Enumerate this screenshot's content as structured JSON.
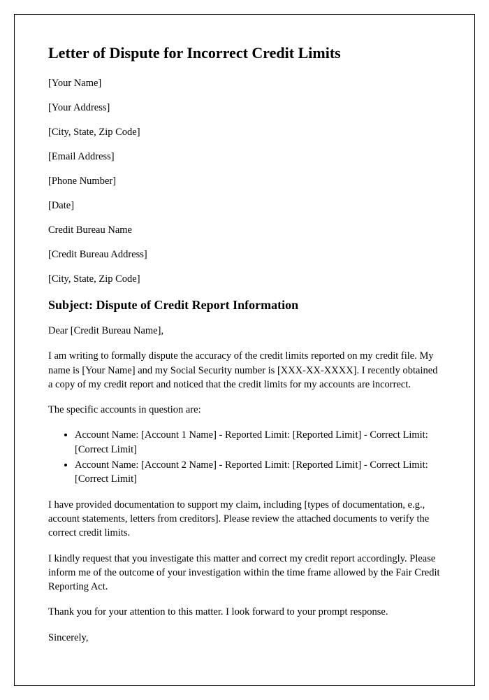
{
  "title": "Letter of Dispute for Incorrect Credit Limits",
  "fields": {
    "your_name": "[Your Name]",
    "your_address": "[Your Address]",
    "your_city_state_zip": "[City, State, Zip Code]",
    "email": "[Email Address]",
    "phone": "[Phone Number]",
    "date": "[Date]",
    "bureau_name": "Credit Bureau Name",
    "bureau_address": "[Credit Bureau Address]",
    "bureau_city_state_zip": "[City, State, Zip Code]"
  },
  "subject": "Subject: Dispute of Credit Report Information",
  "salutation": "Dear [Credit Bureau Name],",
  "paragraphs": {
    "intro": "I am writing to formally dispute the accuracy of the credit limits reported on my credit file. My name is [Your Name] and my Social Security number is [XXX-XX-XXXX]. I recently obtained a copy of my credit report and noticed that the credit limits for my accounts are incorrect.",
    "accounts_lead": "The specific accounts in question are:",
    "documentation": "I have provided documentation to support my claim, including [types of documentation, e.g., account statements, letters from creditors]. Please review the attached documents to verify the correct credit limits.",
    "request": "I kindly request that you investigate this matter and correct my credit report accordingly. Please inform me of the outcome of your investigation within the time frame allowed by the Fair Credit Reporting Act.",
    "thanks": "Thank you for your attention to this matter. I look forward to your prompt response.",
    "closing": "Sincerely,"
  },
  "accounts": [
    "Account Name: [Account 1 Name] - Reported Limit: [Reported Limit] - Correct Limit: [Correct Limit]",
    "Account Name: [Account 2 Name] - Reported Limit: [Reported Limit] - Correct Limit: [Correct Limit]"
  ],
  "style": {
    "font_family": "Georgia, 'Times New Roman', serif",
    "title_fontsize": 22,
    "subject_fontsize": 18,
    "body_fontsize": 14.5,
    "text_color": "#000000",
    "background_color": "#ffffff",
    "border_color": "#000000"
  }
}
